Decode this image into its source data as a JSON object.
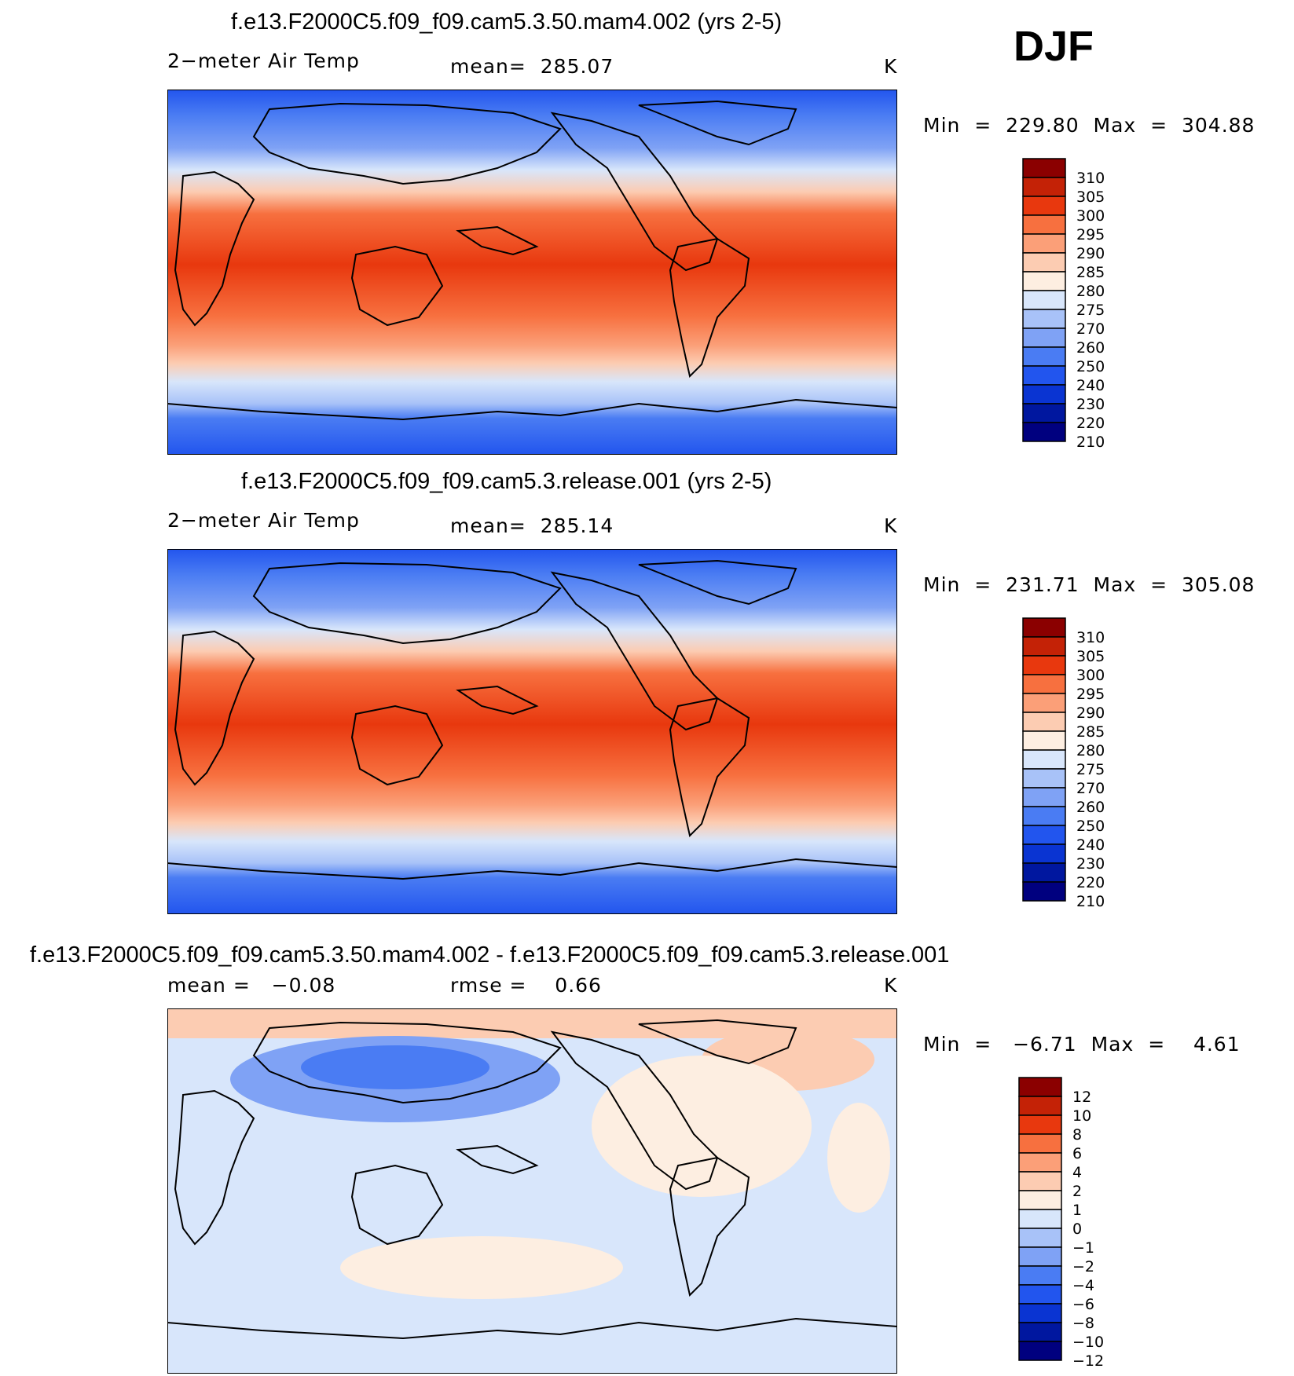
{
  "season": "DJF",
  "colors": {
    "abs_scale": [
      "#00007f",
      "#00179f",
      "#0a34d2",
      "#2255ee",
      "#4a7cf3",
      "#7fa2f5",
      "#a8c2f8",
      "#d8e6fb",
      "#fdeee1",
      "#fcccb2",
      "#fb9f78",
      "#f7703f",
      "#e8380e",
      "#c42206",
      "#8b0000"
    ],
    "diff_scale": [
      "#00007f",
      "#00179f",
      "#0a34d2",
      "#2255ee",
      "#4a7cf3",
      "#7fa2f5",
      "#a8c2f8",
      "#d8e6fb",
      "#fdeee1",
      "#fcccb2",
      "#fb9f78",
      "#f7703f",
      "#e8380e",
      "#c42206",
      "#8b0000"
    ],
    "coast": "#000000"
  },
  "chart_data": [
    {
      "type": "heatmap",
      "title": "f.e13.F2000C5.f09_f09.cam5.3.50.mam4.002 (yrs 2-5)",
      "variable": "2−meter Air Temp",
      "mean_label": "mean=",
      "mean_value": "285.07",
      "units": "K",
      "min_label": "Min",
      "min_value": "229.80",
      "max_label": "Max",
      "max_value": "304.88",
      "eq": "=",
      "min": 229.8,
      "max": 304.88,
      "colorbar_levels": [
        "310",
        "305",
        "300",
        "295",
        "290",
        "285",
        "280",
        "275",
        "270",
        "260",
        "250",
        "240",
        "230",
        "220",
        "210"
      ]
    },
    {
      "type": "heatmap",
      "title": "f.e13.F2000C5.f09_f09.cam5.3.release.001 (yrs 2-5)",
      "variable": "2−meter Air Temp",
      "mean_label": "mean=",
      "mean_value": "285.14",
      "units": "K",
      "min_label": "Min",
      "min_value": "231.71",
      "max_label": "Max",
      "max_value": "305.08",
      "eq": "=",
      "min": 231.71,
      "max": 305.08,
      "colorbar_levels": [
        "310",
        "305",
        "300",
        "295",
        "290",
        "285",
        "280",
        "275",
        "270",
        "260",
        "250",
        "240",
        "230",
        "220",
        "210"
      ]
    },
    {
      "type": "heatmap",
      "title": "f.e13.F2000C5.f09_f09.cam5.3.50.mam4.002 - f.e13.F2000C5.f09_f09.cam5.3.release.001",
      "mean_label": "mean =",
      "mean_value": "−0.08",
      "rmse_label": "rmse =",
      "rmse_value": "0.66",
      "units": "K",
      "min_label": "Min",
      "min_value": "−6.71",
      "max_label": "Max",
      "max_value": "4.61",
      "eq": "=",
      "min": -6.71,
      "max": 4.61,
      "colorbar_levels": [
        "12",
        "10",
        "8",
        "6",
        "4",
        "2",
        "1",
        "0",
        "−1",
        "−2",
        "−4",
        "−6",
        "−8",
        "−10",
        "−12"
      ]
    }
  ]
}
